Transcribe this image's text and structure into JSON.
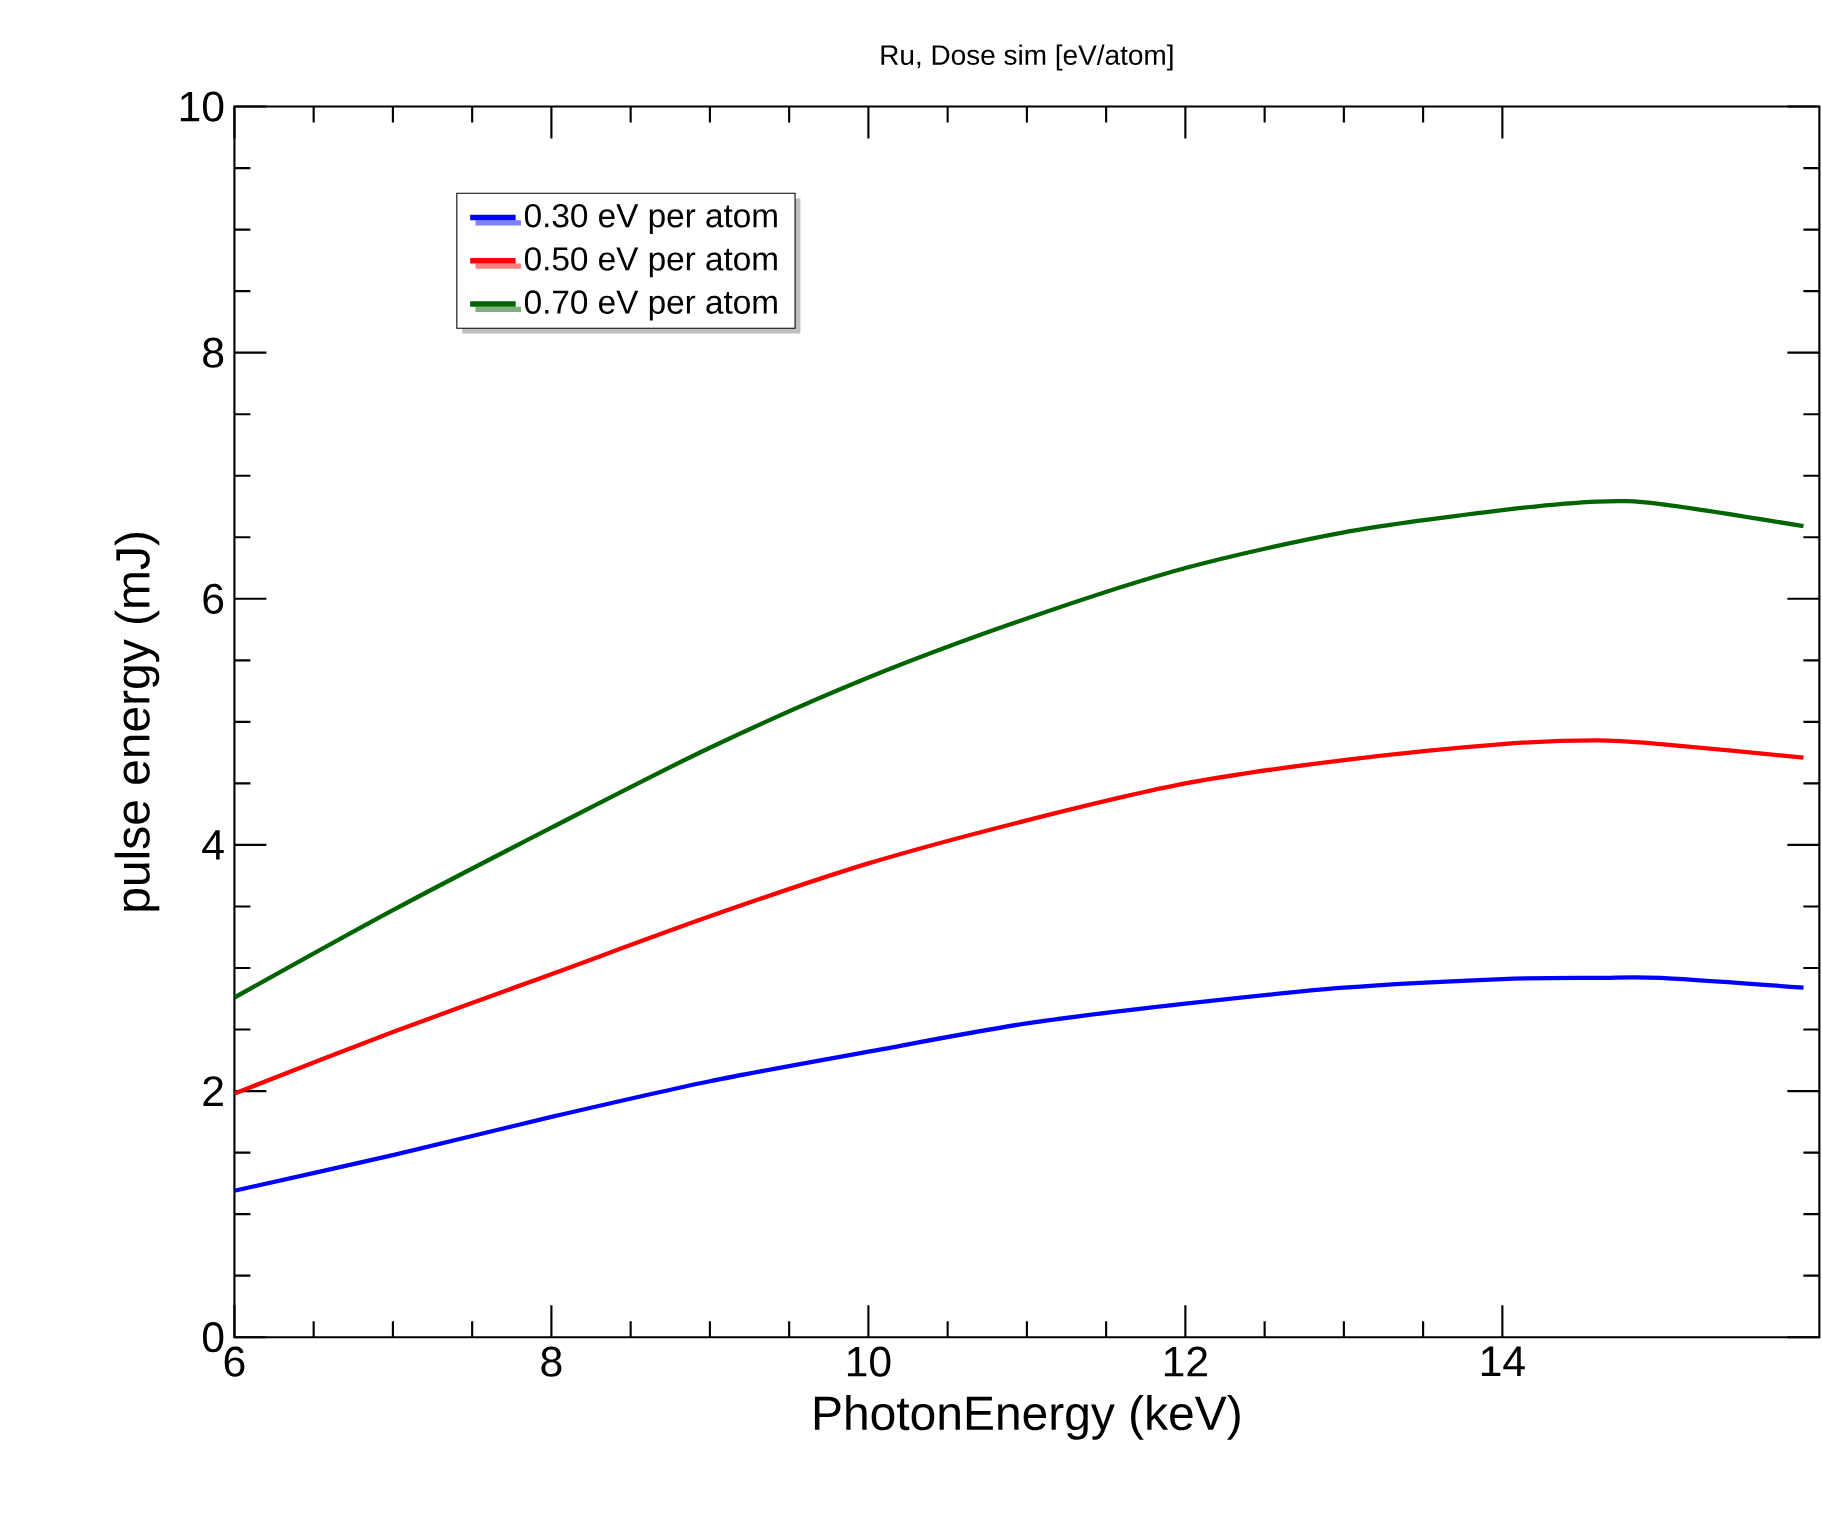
{
  "chart_data": {
    "type": "line",
    "title": "Ru, Dose sim  [eV/atom]",
    "xlabel": "PhotonEnergy (keV)",
    "ylabel": "pulse energy (mJ)",
    "x": [
      6,
      7,
      8,
      9,
      10,
      11,
      12,
      13,
      14,
      14.6,
      15,
      15.9
    ],
    "series": [
      {
        "name": "0.30 eV per atom",
        "color": "#0000ff",
        "values": [
          1.19,
          1.48,
          1.79,
          2.08,
          2.32,
          2.55,
          2.71,
          2.84,
          2.91,
          2.92,
          2.92,
          2.84
        ]
      },
      {
        "name": "0.50 eV per atom",
        "color": "#ff0000",
        "values": [
          1.98,
          2.48,
          2.95,
          3.42,
          3.85,
          4.2,
          4.5,
          4.69,
          4.82,
          4.85,
          4.82,
          4.71
        ]
      },
      {
        "name": "0.70 eV per atom",
        "color": "#006400",
        "values": [
          2.76,
          3.47,
          4.14,
          4.79,
          5.36,
          5.84,
          6.25,
          6.54,
          6.72,
          6.79,
          6.77,
          6.59
        ]
      }
    ],
    "xlim": [
      6,
      16
    ],
    "ylim": [
      0,
      10
    ],
    "xticks": [
      6,
      8,
      10,
      12,
      14
    ],
    "yticks": [
      0,
      2,
      4,
      6,
      8,
      10
    ],
    "grid": false,
    "legend": "top left",
    "marker": "none",
    "line_style": "solid"
  }
}
